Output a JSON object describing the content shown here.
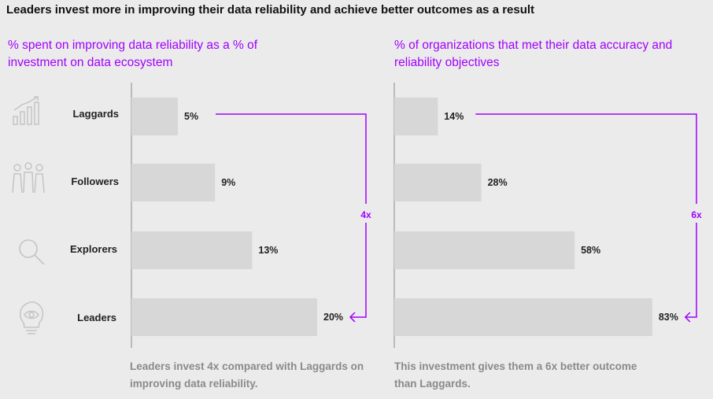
{
  "title": "Leaders invest more in improving their data reliability and achieve better outcomes as a result",
  "categories": [
    {
      "label": "Laggards",
      "icon": "bar-chart-icon"
    },
    {
      "label": "Followers",
      "icon": "people-group-icon"
    },
    {
      "label": "Explorers",
      "icon": "magnifier-icon"
    },
    {
      "label": "Leaders",
      "icon": "lightbulb-eye-icon"
    }
  ],
  "colors": {
    "accent": "#a100ff",
    "bar": "#d7d7d7",
    "note": "#8a8a8a",
    "icon": "#c4c4c4"
  },
  "chart_data": [
    {
      "type": "bar",
      "orientation": "horizontal",
      "subtitle": "% spent on improving data reliability as a % of investment on data ecosystem",
      "categories": [
        "Laggards",
        "Followers",
        "Explorers",
        "Leaders"
      ],
      "values": [
        5,
        9,
        13,
        20
      ],
      "value_labels": [
        "5%",
        "9%",
        "13%",
        "20%"
      ],
      "annotation": "4x",
      "footnote": "Leaders invest 4x compared with Laggards on improving data reliability."
    },
    {
      "type": "bar",
      "orientation": "horizontal",
      "subtitle": "% of organizations that met their data accuracy and reliability objectives",
      "categories": [
        "Laggards",
        "Followers",
        "Explorers",
        "Leaders"
      ],
      "values": [
        14,
        28,
        58,
        83
      ],
      "value_labels": [
        "14%",
        "28%",
        "58%",
        "83%"
      ],
      "annotation": "6x",
      "footnote": "This investment gives them a 6x better outcome than Laggards."
    }
  ]
}
